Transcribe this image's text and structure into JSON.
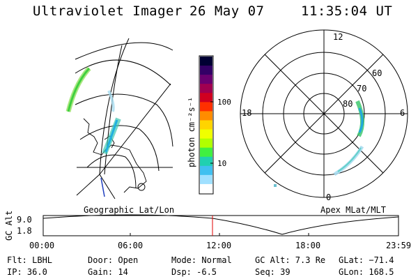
{
  "header": {
    "title": "Ultraviolet Imager",
    "date": "26 May 07",
    "time": "11:35:04 UT"
  },
  "colorbar": {
    "label": "photon cm⁻²s⁻¹",
    "ticks": [
      "100",
      "10"
    ],
    "colors": [
      "#000033",
      "#330066",
      "#6a0070",
      "#a00050",
      "#d00020",
      "#ff3000",
      "#ff8c00",
      "#ffd400",
      "#f0ff00",
      "#b0ff00",
      "#40f040",
      "#20d0b0",
      "#40c0f0",
      "#a0e0ff",
      "#ffffff"
    ]
  },
  "right_panel": {
    "mlt_labels": {
      "top": "12",
      "left": "18",
      "right": "6",
      "bottom": "0"
    },
    "lat_labels": [
      "60",
      "70",
      "80"
    ],
    "title": "Apex MLat/MLT"
  },
  "left_panel": {
    "title": "Geographic Lat/Lon"
  },
  "timeline": {
    "ylabel": "GC Alt",
    "yticks": [
      "9.0",
      "1.8"
    ],
    "xticks": [
      "00:00",
      "06:00",
      "12:00",
      "18:00",
      "23:59"
    ]
  },
  "info": {
    "flt": "Flt: LBHL",
    "ip": "IP: 36.0",
    "door": "Door: Open",
    "gain": "Gain: 14",
    "mode": "Mode: Normal",
    "dsp": "Dsp:    -6.5",
    "gcalt": "GC Alt: 7.3 Re",
    "seq": "Seq: 39",
    "glat": "GLat: −71.4",
    "glon": "GLon: 168.5"
  }
}
